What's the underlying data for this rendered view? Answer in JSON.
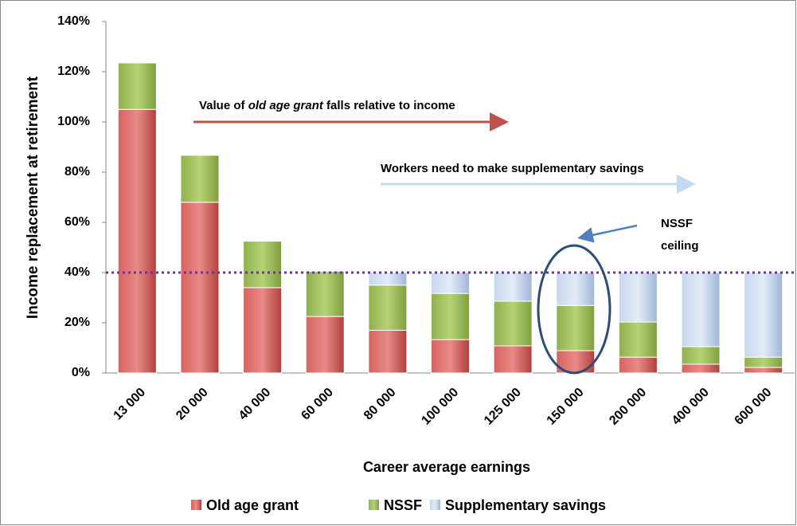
{
  "chart_data": {
    "type": "stacked_bar",
    "y_axis_label": "Income replacement at retirement",
    "x_axis_label": "Career average earnings",
    "categories": [
      "13 000",
      "20 000",
      "40 000",
      "60 000",
      "80 000",
      "100 000",
      "125 000",
      "150 000",
      "200 000",
      "400 000",
      "600 000"
    ],
    "series": [
      {
        "name": "Old age grant",
        "color": "#c0504d",
        "values": [
          105,
          68,
          34,
          22.5,
          17,
          13.3,
          10.8,
          8.9,
          6.3,
          3.5,
          2.2
        ]
      },
      {
        "name": "NSSF",
        "color": "#9bbb59",
        "values": [
          18.5,
          18.7,
          18.5,
          18,
          18,
          18.4,
          17.8,
          18,
          14,
          7,
          4.1
        ]
      },
      {
        "name": "Supplementary savings",
        "color": "#b9cde5",
        "values": [
          0,
          0,
          0,
          0,
          5,
          8.3,
          11.4,
          13,
          19.7,
          29.5,
          33.7
        ]
      }
    ],
    "ylim": [
      0,
      140
    ],
    "yticks": [
      {
        "value": 0,
        "label": "0%"
      },
      {
        "value": 20,
        "label": "20%"
      },
      {
        "value": 40,
        "label": "40%"
      },
      {
        "value": 60,
        "label": "60%"
      },
      {
        "value": 80,
        "label": "80%"
      },
      {
        "value": 100,
        "label": "100%"
      },
      {
        "value": 120,
        "label": "120%"
      },
      {
        "value": 140,
        "label": "140%"
      }
    ],
    "reference_line": 40,
    "legend": "bottom",
    "annotations": {
      "grant": [
        "Value of ",
        "old age grant",
        " falls relative to income"
      ],
      "savings": "Workers need to make supplementary savings",
      "ceiling": [
        "NSSF",
        "ceiling"
      ]
    }
  }
}
